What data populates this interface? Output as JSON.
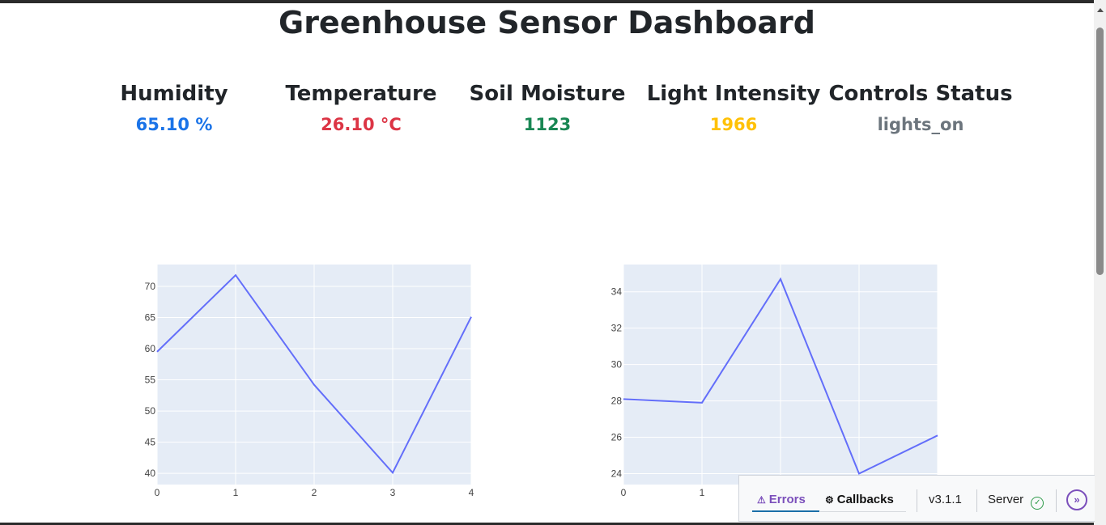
{
  "page": {
    "title": "Greenhouse Sensor Dashboard"
  },
  "metrics": [
    {
      "label": "Humidity",
      "value": "65.10 %",
      "color": "#1a73e8"
    },
    {
      "label": "Temperature",
      "value": "26.10 °C",
      "color": "#dc3545"
    },
    {
      "label": "Soil Moisture",
      "value": "1123",
      "color": "#198754"
    },
    {
      "label": "Light Intensity",
      "value": "1966",
      "color": "#ffc107"
    },
    {
      "label": "Controls Status",
      "value": "lights_on",
      "color": "#6c757d"
    }
  ],
  "chart_data": [
    {
      "type": "line",
      "x": [
        0,
        1,
        2,
        3,
        4
      ],
      "series": [
        {
          "values": [
            59.5,
            71.8,
            54.2,
            40.1,
            65.1
          ]
        }
      ],
      "xticks": [
        "0",
        "1",
        "2",
        "3",
        "4"
      ],
      "yticks": [
        40,
        45,
        50,
        55,
        60,
        65,
        70
      ],
      "xlim": [
        0,
        4
      ],
      "ylim": [
        38.2,
        73.5
      ],
      "grid": true,
      "line_color": "#636efa",
      "plot_bg": "#e5ecf6"
    },
    {
      "type": "line",
      "x": [
        0,
        1,
        2,
        3,
        4
      ],
      "series": [
        {
          "values": [
            28.1,
            27.9,
            34.7,
            24.0,
            26.1
          ]
        }
      ],
      "xticks": [
        "0",
        "1",
        "2",
        "3",
        "4"
      ],
      "yticks": [
        24,
        26,
        28,
        30,
        32,
        34
      ],
      "xlim": [
        0,
        4
      ],
      "ylim": [
        23.4,
        35.5
      ],
      "grid": true,
      "line_color": "#636efa",
      "plot_bg": "#e5ecf6"
    }
  ],
  "devtools": {
    "errors_label": "Errors",
    "callbacks_label": "Callbacks",
    "version": "v3.1.1",
    "server_label": "Server",
    "accent_color": "#7b4fbb"
  }
}
